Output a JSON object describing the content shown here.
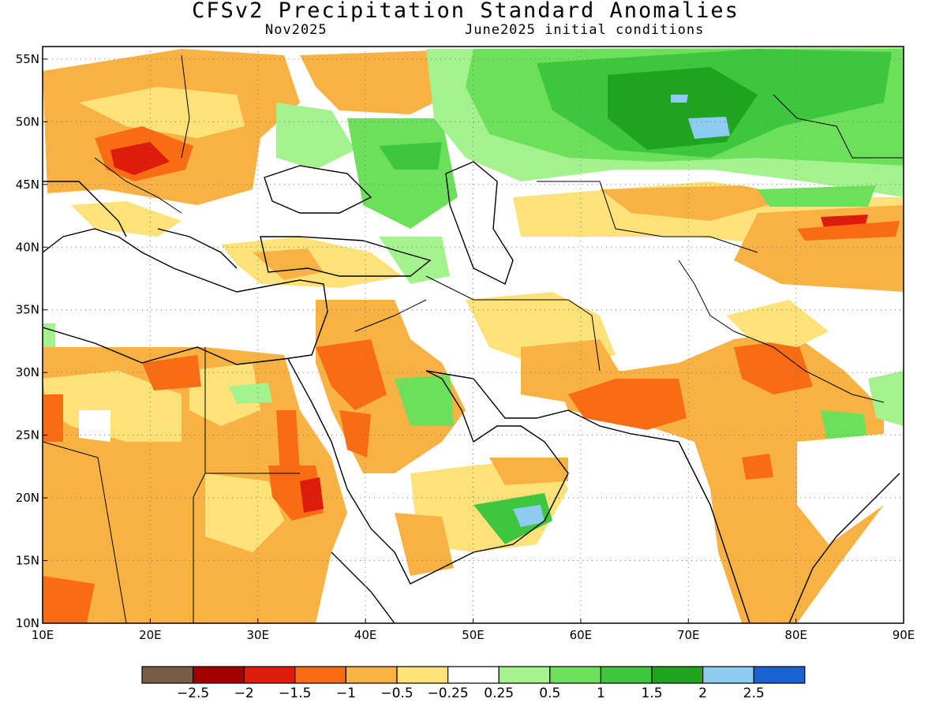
{
  "map": {
    "title": "CFSv2 Precipitation Standard Anomalies",
    "target_month": "Nov2025",
    "initial_conditions": "June2025 initial conditions",
    "lon_ticks": [
      "10E",
      "20E",
      "30E",
      "40E",
      "50E",
      "60E",
      "70E",
      "80E",
      "90E"
    ],
    "lat_ticks": [
      "10N",
      "15N",
      "20N",
      "25N",
      "30N",
      "35N",
      "40N",
      "45N",
      "50N",
      "55N"
    ],
    "lon_range": [
      10,
      90
    ],
    "lat_range": [
      10,
      56
    ],
    "gridlines": "dotted",
    "colors": {
      "dry_extreme": "#7a5a48",
      "dry_very_strong": "#a50000",
      "dry_strong": "#dd1c0c",
      "dry_moderate": "#fa6c14",
      "dry_weak": "#f8b243",
      "dry_slight": "#fde27a",
      "neutral": "#ffffff",
      "wet_slight": "#a4f28e",
      "wet_weak": "#6de05b",
      "wet_moderate": "#3ec63e",
      "wet_strong": "#1ea41e",
      "wet_very_strong": "#8ecbf2",
      "wet_extreme": "#1a62d1"
    }
  },
  "colorbar": {
    "labels": [
      "−2.5",
      "−2",
      "−1.5",
      "−1",
      "−0.5",
      "−0.25",
      "0.25",
      "0.5",
      "1",
      "1.5",
      "2",
      "2.5"
    ],
    "segment_colors": [
      "#7a5a48",
      "#a50000",
      "#dd1c0c",
      "#fa6c14",
      "#f8b243",
      "#fde27a",
      "#ffffff",
      "#a4f28e",
      "#6de05b",
      "#3ec63e",
      "#1ea41e",
      "#8ecbf2",
      "#1a62d1"
    ]
  }
}
